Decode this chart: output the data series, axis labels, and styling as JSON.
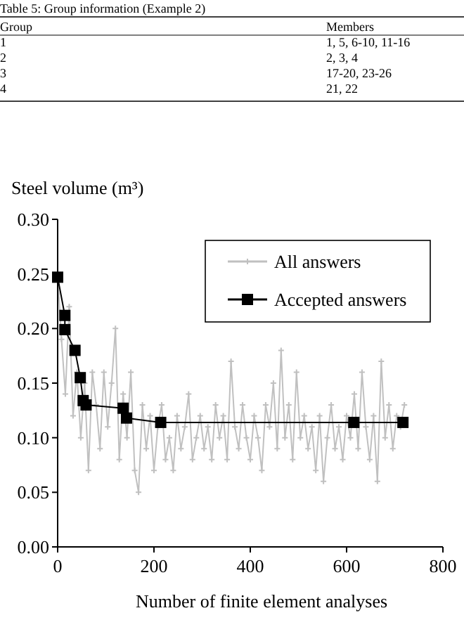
{
  "chart_data": {
    "type": "line",
    "ylabel": "Steel volume (m³)",
    "xlabel": "Number of finite element analyses",
    "annotations": [
      "Table 5: Group information (Example 2)",
      "Group",
      "Members",
      "1",
      "1, 5, 6-10, 11-16",
      "2",
      "2, 3, 4",
      "3",
      "17-20, 23-26",
      "4",
      "21, 22"
    ],
    "xlim": [
      0,
      800
    ],
    "xticks": [
      0,
      200,
      400,
      600,
      800
    ],
    "ylim": [
      0,
      0.3
    ],
    "yticks": [
      {
        "value": 0,
        "label": "0.00"
      },
      {
        "value": 0.05,
        "label": "0.05"
      },
      {
        "value": 0.1,
        "label": "0.10"
      },
      {
        "value": 0.15,
        "label": "0.15"
      },
      {
        "value": 0.2,
        "label": "0.20"
      },
      {
        "value": 0.25,
        "label": "0.25"
      },
      {
        "value": 0.3,
        "label": "0.30"
      }
    ],
    "grid": false,
    "legend": "top right",
    "line_style": "solid",
    "series": [
      {
        "name": "All answers",
        "color": "#c0c0c0",
        "marker": "cross",
        "x": [
          0,
          8,
          16,
          24,
          32,
          40,
          48,
          56,
          64,
          72,
          80,
          88,
          96,
          104,
          112,
          120,
          128,
          136,
          144,
          152,
          160,
          168,
          176,
          184,
          192,
          200,
          208,
          216,
          224,
          232,
          240,
          248,
          256,
          264,
          272,
          280,
          288,
          296,
          304,
          312,
          320,
          328,
          336,
          344,
          352,
          360,
          368,
          376,
          384,
          392,
          400,
          408,
          416,
          424,
          432,
          440,
          448,
          456,
          464,
          472,
          480,
          488,
          496,
          504,
          512,
          520,
          528,
          536,
          544,
          552,
          560,
          568,
          576,
          584,
          592,
          600,
          608,
          616,
          624,
          632,
          640,
          648,
          656,
          664,
          672,
          680,
          688,
          696,
          704,
          712,
          720
        ],
        "values": [
          0.25,
          0.19,
          0.14,
          0.22,
          0.12,
          0.16,
          0.1,
          0.15,
          0.07,
          0.16,
          0.13,
          0.09,
          0.16,
          0.11,
          0.15,
          0.2,
          0.08,
          0.14,
          0.1,
          0.16,
          0.07,
          0.05,
          0.13,
          0.09,
          0.12,
          0.07,
          0.11,
          0.13,
          0.08,
          0.1,
          0.07,
          0.12,
          0.09,
          0.11,
          0.14,
          0.08,
          0.1,
          0.12,
          0.09,
          0.11,
          0.08,
          0.13,
          0.1,
          0.12,
          0.08,
          0.17,
          0.11,
          0.09,
          0.13,
          0.1,
          0.08,
          0.12,
          0.1,
          0.07,
          0.13,
          0.11,
          0.15,
          0.09,
          0.18,
          0.1,
          0.13,
          0.08,
          0.16,
          0.1,
          0.12,
          0.09,
          0.11,
          0.07,
          0.12,
          0.06,
          0.1,
          0.13,
          0.09,
          0.11,
          0.08,
          0.12,
          0.1,
          0.14,
          0.09,
          0.16,
          0.11,
          0.08,
          0.12,
          0.06,
          0.17,
          0.1,
          0.13,
          0.09,
          0.12,
          0.11,
          0.13
        ]
      },
      {
        "name": "Accepted answers",
        "color": "#000000",
        "marker": "square",
        "x": [
          0,
          15,
          15,
          36,
          47,
          53,
          59,
          136,
          143,
          214,
          615,
          717
        ],
        "values": [
          0.247,
          0.212,
          0.199,
          0.18,
          0.155,
          0.134,
          0.13,
          0.127,
          0.118,
          0.114,
          0.114,
          0.114
        ]
      }
    ]
  }
}
